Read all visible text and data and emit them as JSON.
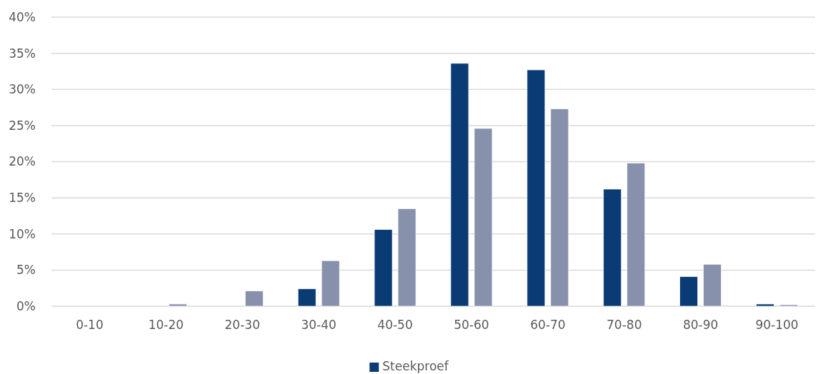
{
  "chart_data": {
    "type": "bar",
    "categories": [
      "0-10",
      "10-20",
      "20-30",
      "30-40",
      "40-50",
      "50-60",
      "60-70",
      "70-80",
      "80-90",
      "90-100"
    ],
    "series": [
      {
        "name": "Steekproef",
        "color": "#0a3b75",
        "values": [
          0,
          0,
          0,
          2.4,
          10.6,
          33.6,
          32.7,
          16.2,
          4.1,
          0.3
        ]
      },
      {
        "color": "#8791ac",
        "values": [
          0,
          0.3,
          2.1,
          6.3,
          13.5,
          24.6,
          27.3,
          19.8,
          5.8,
          0.2
        ]
      }
    ],
    "ylim": [
      0,
      40
    ],
    "yticks": [
      {
        "value": 0,
        "label": "0%"
      },
      {
        "value": 5,
        "label": "5%"
      },
      {
        "value": 10,
        "label": "10%"
      },
      {
        "value": 15,
        "label": "15%"
      },
      {
        "value": 20,
        "label": "20%"
      },
      {
        "value": 25,
        "label": "25%"
      },
      {
        "value": 30,
        "label": "30%"
      },
      {
        "value": 35,
        "label": "35%"
      },
      {
        "value": 40,
        "label": "40%"
      }
    ],
    "grid": "y",
    "legend": "bottom"
  }
}
